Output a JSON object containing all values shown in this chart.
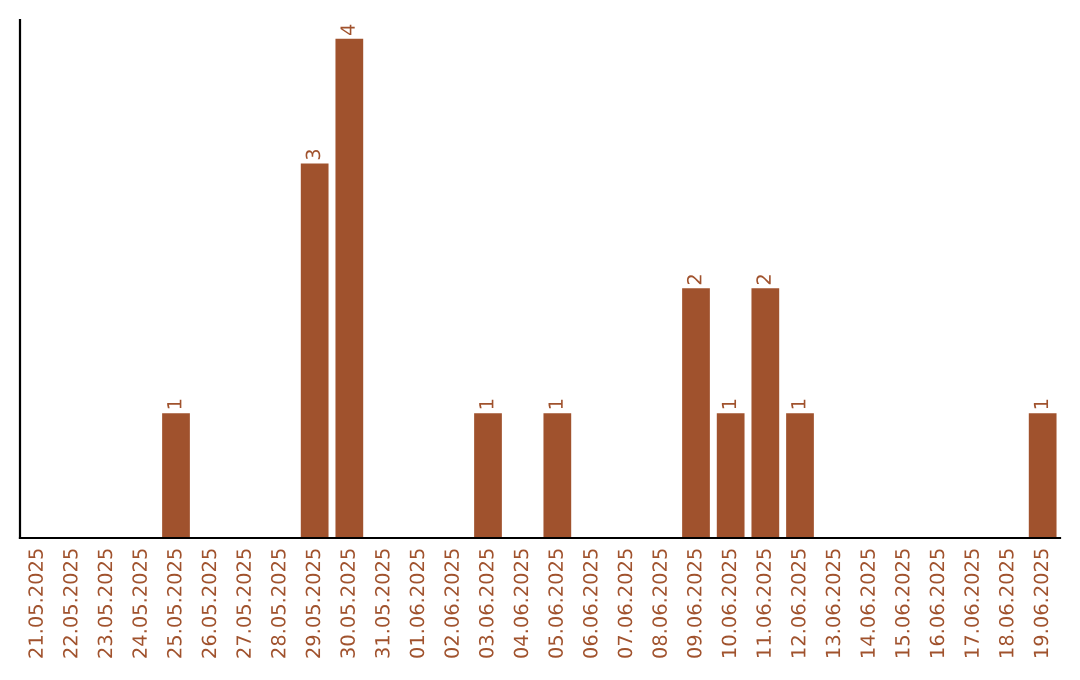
{
  "chart_data": {
    "type": "bar",
    "categories": [
      "21.05.2025",
      "22.05.2025",
      "23.05.2025",
      "24.05.2025",
      "25.05.2025",
      "26.05.2025",
      "27.05.2025",
      "28.05.2025",
      "29.05.2025",
      "30.05.2025",
      "31.05.2025",
      "01.06.2025",
      "02.06.2025",
      "03.06.2025",
      "04.06.2025",
      "05.06.2025",
      "06.06.2025",
      "07.06.2025",
      "08.06.2025",
      "09.06.2025",
      "10.06.2025",
      "11.06.2025",
      "12.06.2025",
      "13.06.2025",
      "14.06.2025",
      "15.06.2025",
      "16.06.2025",
      "17.06.2025",
      "18.06.2025",
      "19.06.2025"
    ],
    "values": [
      0,
      0,
      0,
      0,
      1,
      0,
      0,
      0,
      3,
      4,
      0,
      0,
      0,
      1,
      0,
      1,
      0,
      0,
      0,
      2,
      1,
      2,
      1,
      0,
      0,
      0,
      0,
      0,
      0,
      1
    ],
    "value_labels": [
      null,
      null,
      null,
      null,
      "1",
      null,
      null,
      null,
      "3",
      "4",
      null,
      null,
      null,
      "1",
      null,
      "1",
      null,
      null,
      null,
      "2",
      "1",
      "2",
      "1",
      null,
      null,
      null,
      null,
      null,
      null,
      "1"
    ],
    "color": "#a0522d",
    "ylim": [
      0,
      4.15
    ],
    "tick_labels": "x",
    "grid": false,
    "legend": false
  }
}
